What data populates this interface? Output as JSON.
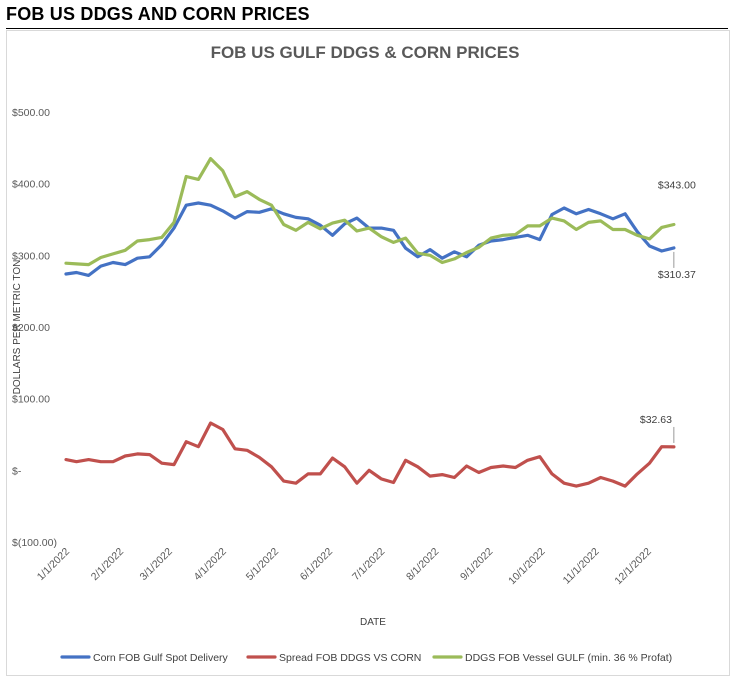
{
  "header": {
    "title": "FOB US DDGS AND CORN PRICES"
  },
  "chart_data": {
    "type": "line",
    "title": "FOB US GULF DDGS & CORN PRICES",
    "xlabel": "DATE",
    "ylabel": "DOLLARS PER METRIC TON",
    "ylim": [
      -100,
      500
    ],
    "y_ticks": [
      {
        "value": 500,
        "label": "$500.00"
      },
      {
        "value": 400,
        "label": "$400.00"
      },
      {
        "value": 300,
        "label": "$300.00"
      },
      {
        "value": 200,
        "label": "$200.00"
      },
      {
        "value": 100,
        "label": "$100.00"
      },
      {
        "value": 0,
        "label": "$-"
      },
      {
        "value": -100,
        "label": "$(100.00)"
      }
    ],
    "x_ticks": [
      "1/1/2022",
      "2/1/2022",
      "3/1/2022",
      "4/1/2022",
      "5/1/2022",
      "6/1/2022",
      "7/1/2022",
      "8/1/2022",
      "9/1/2022",
      "10/1/2022",
      "11/1/2022",
      "12/1/2022"
    ],
    "xlim": [
      "2022-01-01",
      "2022-12-31"
    ],
    "grid": false,
    "legend_position": "bottom",
    "series": [
      {
        "name": "Corn FOB Gulf Spot Delivery",
        "color": "#4472c4",
        "x": [
          "2022-01-01",
          "2022-01-07",
          "2022-01-14",
          "2022-01-21",
          "2022-01-28",
          "2022-02-04",
          "2022-02-11",
          "2022-02-18",
          "2022-02-25",
          "2022-03-04",
          "2022-03-11",
          "2022-03-18",
          "2022-03-25",
          "2022-04-01",
          "2022-04-08",
          "2022-04-15",
          "2022-04-22",
          "2022-04-29",
          "2022-05-06",
          "2022-05-13",
          "2022-05-20",
          "2022-05-27",
          "2022-06-03",
          "2022-06-10",
          "2022-06-17",
          "2022-06-24",
          "2022-07-01",
          "2022-07-08",
          "2022-07-15",
          "2022-07-22",
          "2022-07-29",
          "2022-08-05",
          "2022-08-12",
          "2022-08-19",
          "2022-08-26",
          "2022-09-02",
          "2022-09-09",
          "2022-09-16",
          "2022-09-23",
          "2022-09-30",
          "2022-10-07",
          "2022-10-14",
          "2022-10-21",
          "2022-10-28",
          "2022-11-04",
          "2022-11-11",
          "2022-11-18",
          "2022-11-25",
          "2022-12-02",
          "2022-12-09",
          "2022-12-16"
        ],
        "values": [
          274,
          276,
          272,
          285,
          290,
          287,
          296,
          298,
          315,
          338,
          370,
          373,
          370,
          362,
          352,
          361,
          360,
          365,
          358,
          353,
          351,
          342,
          328,
          344,
          352,
          338,
          338,
          335,
          310,
          298,
          308,
          296,
          305,
          298,
          314,
          320,
          322,
          325,
          328,
          322,
          357,
          366,
          358,
          364,
          358,
          351,
          358,
          333,
          313,
          306,
          310.37
        ]
      },
      {
        "name": "Spread FOB DDGS VS CORN",
        "color": "#c0504d",
        "x": [
          "2022-01-01",
          "2022-01-07",
          "2022-01-14",
          "2022-01-21",
          "2022-01-28",
          "2022-02-04",
          "2022-02-11",
          "2022-02-18",
          "2022-02-25",
          "2022-03-04",
          "2022-03-11",
          "2022-03-18",
          "2022-03-25",
          "2022-04-01",
          "2022-04-08",
          "2022-04-15",
          "2022-04-22",
          "2022-04-29",
          "2022-05-06",
          "2022-05-13",
          "2022-05-20",
          "2022-05-27",
          "2022-06-03",
          "2022-06-10",
          "2022-06-17",
          "2022-06-24",
          "2022-07-01",
          "2022-07-08",
          "2022-07-15",
          "2022-07-22",
          "2022-07-29",
          "2022-08-05",
          "2022-08-12",
          "2022-08-19",
          "2022-08-26",
          "2022-09-02",
          "2022-09-09",
          "2022-09-16",
          "2022-09-23",
          "2022-09-30",
          "2022-10-07",
          "2022-10-14",
          "2022-10-21",
          "2022-10-28",
          "2022-11-04",
          "2022-11-11",
          "2022-11-18",
          "2022-11-25",
          "2022-12-02",
          "2022-12-09",
          "2022-12-16"
        ],
        "values": [
          15,
          12,
          15,
          12,
          12,
          20,
          23,
          22,
          10,
          8,
          40,
          33,
          66,
          57,
          30,
          28,
          18,
          5,
          -15,
          -18,
          -5,
          -5,
          17,
          5,
          -18,
          0,
          -12,
          -17,
          14,
          5,
          -8,
          -6,
          -10,
          6,
          -3,
          4,
          6,
          4,
          14,
          19,
          -5,
          -18,
          -22,
          -18,
          -10,
          -15,
          -22,
          -5,
          10,
          33,
          32.63
        ]
      },
      {
        "name": "DDGS FOB Vessel GULF  (min. 36 % Profat)",
        "color": "#9bbb59",
        "x": [
          "2022-01-01",
          "2022-01-07",
          "2022-01-14",
          "2022-01-21",
          "2022-01-28",
          "2022-02-04",
          "2022-02-11",
          "2022-02-18",
          "2022-02-25",
          "2022-03-04",
          "2022-03-11",
          "2022-03-18",
          "2022-03-25",
          "2022-04-01",
          "2022-04-08",
          "2022-04-15",
          "2022-04-22",
          "2022-04-29",
          "2022-05-06",
          "2022-05-13",
          "2022-05-20",
          "2022-05-27",
          "2022-06-03",
          "2022-06-10",
          "2022-06-17",
          "2022-06-24",
          "2022-07-01",
          "2022-07-08",
          "2022-07-15",
          "2022-07-22",
          "2022-07-29",
          "2022-08-05",
          "2022-08-12",
          "2022-08-19",
          "2022-08-26",
          "2022-09-02",
          "2022-09-09",
          "2022-09-16",
          "2022-09-23",
          "2022-09-30",
          "2022-10-07",
          "2022-10-14",
          "2022-10-21",
          "2022-10-28",
          "2022-11-04",
          "2022-11-11",
          "2022-11-18",
          "2022-11-25",
          "2022-12-02",
          "2022-12-09",
          "2022-12-16"
        ],
        "values": [
          289,
          288,
          287,
          297,
          302,
          307,
          320,
          322,
          325,
          346,
          410,
          406,
          435,
          418,
          382,
          389,
          378,
          370,
          343,
          335,
          346,
          337,
          345,
          349,
          334,
          338,
          326,
          318,
          324,
          303,
          300,
          290,
          295,
          304,
          311,
          324,
          328,
          329,
          341,
          341,
          352,
          348,
          336,
          346,
          348,
          336,
          336,
          328,
          323,
          339,
          343.0
        ]
      }
    ],
    "annotations": [
      {
        "series": "DDGS FOB Vessel GULF  (min. 36 % Profat)",
        "x": "2022-12-16",
        "value": 343.0,
        "text": "$343.00"
      },
      {
        "series": "Corn FOB Gulf Spot Delivery",
        "x": "2022-12-16",
        "value": 310.37,
        "text": "$310.37"
      },
      {
        "series": "Spread FOB DDGS VS CORN",
        "x": "2022-12-16",
        "value": 32.63,
        "text": "$32.63"
      }
    ]
  }
}
